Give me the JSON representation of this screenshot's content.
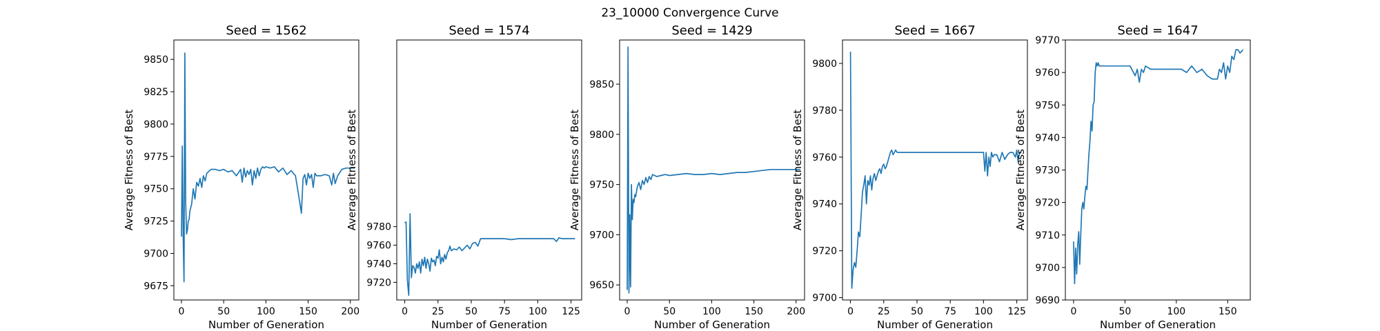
{
  "figure": {
    "suptitle": "23_10000 Convergence Curve",
    "line_color": "#1f77b4"
  },
  "chart_data": [
    {
      "type": "line",
      "title": "Seed = 1562",
      "xlabel": "Number of Generation",
      "ylabel": "Average Fitness of Best",
      "xlim": [
        -9,
        210
      ],
      "ylim": [
        9664,
        9865
      ],
      "xticks": [
        0,
        50,
        100,
        150,
        200
      ],
      "yticks": [
        9675,
        9700,
        9725,
        9750,
        9775,
        9800,
        9825,
        9850
      ],
      "series": [
        {
          "x": [
            0,
            1,
            2,
            3,
            4,
            5,
            6,
            7,
            8,
            9,
            10,
            12,
            14,
            16,
            18,
            20,
            22,
            24,
            26,
            28,
            30,
            35,
            40,
            45,
            50,
            55,
            60,
            65,
            70,
            72,
            74,
            76,
            78,
            80,
            82,
            84,
            86,
            88,
            90,
            92,
            94,
            96,
            98,
            100,
            105,
            110,
            115,
            120,
            125,
            130,
            135,
            140,
            142,
            144,
            146,
            148,
            150,
            152,
            154,
            156,
            158,
            160,
            165,
            170,
            175,
            178,
            180,
            182,
            185,
            190,
            195,
            200,
            205
          ],
          "y": [
            9713,
            9783,
            9712,
            9678,
            9855,
            9740,
            9715,
            9718,
            9725,
            9726,
            9733,
            9738,
            9750,
            9742,
            9755,
            9752,
            9758,
            9751,
            9760,
            9756,
            9762,
            9765,
            9765,
            9764,
            9765,
            9763,
            9764,
            9760,
            9765,
            9755,
            9766,
            9759,
            9764,
            9761,
            9765,
            9753,
            9764,
            9758,
            9766,
            9760,
            9765,
            9767,
            9766,
            9767,
            9766,
            9767,
            9763,
            9766,
            9761,
            9764,
            9760,
            9740,
            9731,
            9758,
            9761,
            9753,
            9762,
            9758,
            9761,
            9751,
            9762,
            9760,
            9760,
            9761,
            9760,
            9753,
            9762,
            9754,
            9760,
            9765,
            9766,
            9766,
            9766
          ]
        }
      ]
    },
    {
      "type": "line",
      "title": "Seed = 1574",
      "xlabel": "Number of Generation",
      "ylabel": "Average Fitness of Best",
      "xlim": [
        -6,
        133
      ],
      "ylim": [
        9701,
        9981
      ],
      "xticks": [
        0,
        25,
        50,
        75,
        100,
        125
      ],
      "yticks": [
        9720,
        9740,
        9760,
        9780
      ],
      "series": [
        {
          "x": [
            0,
            1,
            2,
            3,
            4,
            5,
            6,
            7,
            8,
            9,
            10,
            11,
            12,
            13,
            14,
            15,
            16,
            17,
            18,
            19,
            20,
            21,
            22,
            23,
            24,
            25,
            26,
            27,
            28,
            29,
            30,
            31,
            32,
            33,
            34,
            35,
            37,
            39,
            41,
            43,
            45,
            47,
            49,
            51,
            53,
            55,
            57,
            59,
            61,
            63,
            65,
            70,
            75,
            80,
            85,
            90,
            95,
            100,
            105,
            110,
            112,
            114,
            116,
            118,
            120,
            125,
            128
          ],
          "y": [
            9784,
            9785,
            9722,
            9706,
            9794,
            9725,
            9738,
            9736,
            9730,
            9740,
            9735,
            9742,
            9730,
            9745,
            9738,
            9747,
            9735,
            9745,
            9740,
            9732,
            9746,
            9742,
            9744,
            9738,
            9748,
            9746,
            9755,
            9740,
            9747,
            9742,
            9750,
            9745,
            9752,
            9754,
            9759,
            9754,
            9756,
            9755,
            9758,
            9754,
            9757,
            9760,
            9756,
            9762,
            9763,
            9759,
            9767,
            9767,
            9767,
            9767,
            9767,
            9767,
            9767,
            9766,
            9767,
            9767,
            9767,
            9767,
            9767,
            9767,
            9767,
            9764,
            9768,
            9767,
            9767,
            9767,
            9767
          ]
        }
      ]
    },
    {
      "type": "line",
      "title": "Seed = 1429",
      "xlabel": "Number of Generation",
      "ylabel": "Average Fitness of Best",
      "xlim": [
        -9,
        210
      ],
      "ylim": [
        9635,
        9894
      ],
      "xticks": [
        0,
        50,
        100,
        150,
        200
      ],
      "yticks": [
        9650,
        9700,
        9750,
        9800,
        9850
      ],
      "series": [
        {
          "x": [
            0,
            1,
            2,
            3,
            4,
            5,
            6,
            7,
            8,
            9,
            10,
            12,
            14,
            16,
            18,
            20,
            22,
            24,
            26,
            28,
            30,
            35,
            40,
            45,
            50,
            60,
            70,
            80,
            90,
            100,
            110,
            120,
            130,
            140,
            150,
            160,
            170,
            180,
            190,
            200,
            205
          ],
          "y": [
            9645,
            9887,
            9642,
            9720,
            9648,
            9750,
            9715,
            9735,
            9732,
            9740,
            9738,
            9748,
            9752,
            9745,
            9754,
            9750,
            9757,
            9752,
            9758,
            9755,
            9760,
            9758,
            9759,
            9760,
            9759,
            9760,
            9761,
            9760,
            9760,
            9761,
            9760,
            9761,
            9762,
            9762,
            9763,
            9764,
            9765,
            9765,
            9765,
            9765,
            9765
          ]
        }
      ]
    },
    {
      "type": "line",
      "title": "Seed = 1667",
      "xlabel": "Number of Generation",
      "ylabel": "Average Fitness of Best",
      "xlim": [
        -6,
        133
      ],
      "ylim": [
        9699,
        9810
      ],
      "xticks": [
        0,
        25,
        50,
        75,
        100,
        125
      ],
      "yticks": [
        9700,
        9720,
        9740,
        9760,
        9780,
        9800
      ],
      "series": [
        {
          "x": [
            0,
            1,
            2,
            3,
            4,
            5,
            6,
            7,
            8,
            9,
            10,
            11,
            12,
            13,
            14,
            15,
            16,
            17,
            18,
            19,
            20,
            21,
            22,
            23,
            24,
            25,
            26,
            27,
            28,
            29,
            30,
            31,
            32,
            33,
            34,
            35,
            36,
            38,
            40,
            45,
            50,
            55,
            60,
            65,
            70,
            75,
            80,
            85,
            90,
            95,
            100,
            101,
            102,
            103,
            104,
            105,
            106,
            107,
            108,
            110,
            112,
            114,
            116,
            118,
            120,
            122,
            124,
            125,
            126,
            127,
            128
          ],
          "y": [
            9805,
            9704,
            9712,
            9715,
            9713,
            9720,
            9728,
            9726,
            9735,
            9745,
            9748,
            9752,
            9740,
            9750,
            9748,
            9752,
            9746,
            9751,
            9753,
            9750,
            9752,
            9754,
            9755,
            9753,
            9756,
            9757,
            9755,
            9756,
            9758,
            9760,
            9762,
            9763,
            9761,
            9762,
            9763,
            9762,
            9762,
            9762,
            9762,
            9762,
            9762,
            9762,
            9762,
            9762,
            9762,
            9762,
            9762,
            9762,
            9762,
            9762,
            9762,
            9754,
            9762,
            9752,
            9760,
            9756,
            9762,
            9760,
            9761,
            9761,
            9758,
            9762,
            9759,
            9761,
            9762,
            9762,
            9760,
            9763,
            9758,
            9762,
            9762
          ]
        }
      ]
    },
    {
      "type": "line",
      "title": "Seed = 1647",
      "xlabel": "Number of Generation",
      "ylabel": "Average Fitness of Best",
      "xlim": [
        -8,
        172
      ],
      "ylim": [
        9690,
        9770
      ],
      "xticks": [
        0,
        50,
        100,
        150
      ],
      "yticks": [
        9690,
        9700,
        9710,
        9720,
        9730,
        9740,
        9750,
        9760,
        9770
      ],
      "series": [
        {
          "x": [
            0,
            1,
            2,
            3,
            4,
            5,
            6,
            7,
            8,
            9,
            10,
            11,
            12,
            13,
            14,
            15,
            16,
            17,
            18,
            19,
            20,
            21,
            22,
            23,
            24,
            25,
            26,
            28,
            30,
            35,
            40,
            45,
            50,
            55,
            60,
            62,
            64,
            66,
            68,
            70,
            75,
            80,
            85,
            90,
            95,
            100,
            105,
            110,
            115,
            120,
            125,
            130,
            135,
            140,
            142,
            144,
            146,
            148,
            150,
            152,
            154,
            156,
            158,
            160,
            162,
            165
          ],
          "y": [
            9708,
            9695,
            9706,
            9698,
            9707,
            9711,
            9701,
            9710,
            9718,
            9720,
            9718,
            9722,
            9725,
            9724,
            9730,
            9735,
            9739,
            9745,
            9742,
            9750,
            9751,
            9760,
            9763,
            9762,
            9763,
            9762,
            9762,
            9762,
            9762,
            9762,
            9762,
            9762,
            9762,
            9762,
            9759,
            9761,
            9757,
            9761,
            9760,
            9762,
            9761,
            9761,
            9761,
            9761,
            9761,
            9761,
            9761,
            9760,
            9762,
            9760,
            9761,
            9759,
            9758,
            9758,
            9761,
            9760,
            9763,
            9758,
            9762,
            9760,
            9765,
            9764,
            9767,
            9767,
            9766,
            9767
          ]
        }
      ]
    }
  ]
}
